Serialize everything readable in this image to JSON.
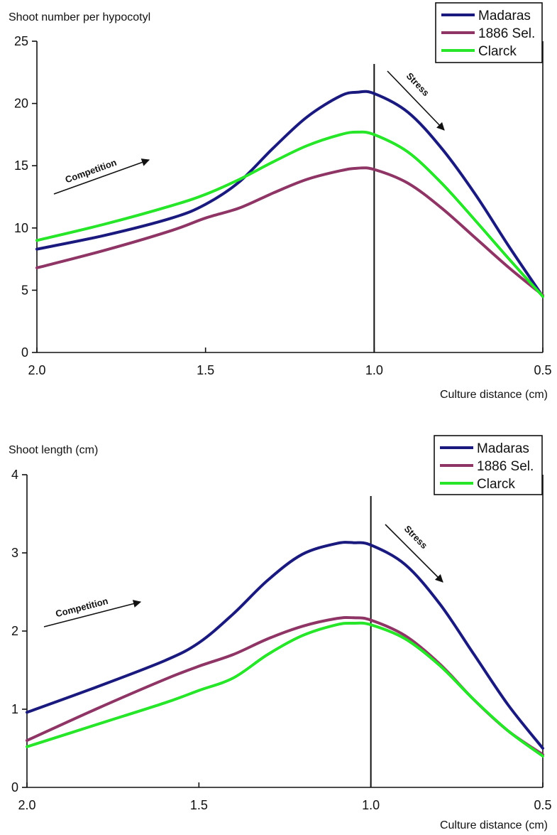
{
  "chart_data": [
    {
      "type": "line",
      "title": "",
      "ylabel": "Shoot number per hypocotyl",
      "xlabel": "Culture distance (cm)",
      "xlim": [
        2.0,
        0.5
      ],
      "ylim": [
        0,
        25
      ],
      "xticks": [
        2.0,
        1.5,
        1.0,
        0.5
      ],
      "xtick_labels": [
        "2.0",
        "1.5",
        "1.0",
        "0.5"
      ],
      "yticks": [
        0,
        5,
        10,
        15,
        20,
        25
      ],
      "ytick_labels": [
        "0",
        "5",
        "10",
        "15",
        "20",
        "25"
      ],
      "grid": false,
      "legend_position": "top-right",
      "reference_line_x": 1.0,
      "annotations": [
        {
          "text": "Competition",
          "side": "left"
        },
        {
          "text": "Stress",
          "side": "right"
        }
      ],
      "series": [
        {
          "name": "Madaras",
          "color": "#1a1a7e",
          "x": [
            2.0,
            1.8,
            1.6,
            1.5,
            1.4,
            1.3,
            1.2,
            1.1,
            1.05,
            1.0,
            0.9,
            0.8,
            0.7,
            0.6,
            0.5
          ],
          "y": [
            8.3,
            9.4,
            10.8,
            11.9,
            13.7,
            16.4,
            18.9,
            20.6,
            20.9,
            20.8,
            19.3,
            16.4,
            12.7,
            8.5,
            4.5
          ]
        },
        {
          "name": "1886 Sel.",
          "color": "#8e3566",
          "x": [
            2.0,
            1.8,
            1.6,
            1.5,
            1.4,
            1.3,
            1.2,
            1.1,
            1.05,
            1.0,
            0.9,
            0.8,
            0.7,
            0.6,
            0.5
          ],
          "y": [
            6.8,
            8.2,
            9.8,
            10.8,
            11.6,
            12.8,
            13.9,
            14.6,
            14.8,
            14.7,
            13.6,
            11.6,
            9.2,
            6.8,
            4.6
          ]
        },
        {
          "name": "Clarck",
          "color": "#27e62a",
          "x": [
            2.0,
            1.8,
            1.6,
            1.5,
            1.4,
            1.3,
            1.2,
            1.1,
            1.05,
            1.0,
            0.9,
            0.8,
            0.7,
            0.6,
            0.5
          ],
          "y": [
            9.0,
            10.3,
            11.8,
            12.7,
            13.9,
            15.3,
            16.6,
            17.5,
            17.7,
            17.5,
            16.1,
            13.6,
            10.6,
            7.5,
            4.5
          ]
        }
      ]
    },
    {
      "type": "line",
      "title": "",
      "ylabel": "Shoot length (cm)",
      "xlabel": "Culture distance (cm)",
      "xlim": [
        2.0,
        0.5
      ],
      "ylim": [
        0,
        4
      ],
      "xticks": [
        2.0,
        1.5,
        1.0,
        0.5
      ],
      "xtick_labels": [
        "2.0",
        "1.5",
        "1.0",
        "0.5"
      ],
      "yticks": [
        0,
        1,
        2,
        3,
        4
      ],
      "ytick_labels": [
        "0",
        "1",
        "2",
        "3",
        "4"
      ],
      "grid": false,
      "legend_position": "top-right",
      "reference_line_x": 1.0,
      "annotations": [
        {
          "text": "Competition",
          "side": "left"
        },
        {
          "text": "Stress",
          "side": "right"
        }
      ],
      "series": [
        {
          "name": "Madaras",
          "color": "#1a1a7e",
          "x": [
            2.0,
            1.8,
            1.6,
            1.5,
            1.4,
            1.3,
            1.2,
            1.1,
            1.05,
            1.0,
            0.9,
            0.8,
            0.7,
            0.6,
            0.5
          ],
          "y": [
            0.96,
            1.28,
            1.62,
            1.85,
            2.22,
            2.65,
            2.98,
            3.12,
            3.13,
            3.1,
            2.85,
            2.35,
            1.7,
            1.05,
            0.5
          ]
        },
        {
          "name": "1886 Sel.",
          "color": "#8e3566",
          "x": [
            2.0,
            1.8,
            1.6,
            1.5,
            1.4,
            1.3,
            1.2,
            1.1,
            1.05,
            1.0,
            0.9,
            0.8,
            0.7,
            0.6,
            0.5
          ],
          "y": [
            0.6,
            1.0,
            1.38,
            1.55,
            1.7,
            1.9,
            2.06,
            2.16,
            2.17,
            2.14,
            1.94,
            1.58,
            1.12,
            0.72,
            0.42
          ]
        },
        {
          "name": "Clarck",
          "color": "#27e62a",
          "x": [
            2.0,
            1.8,
            1.6,
            1.5,
            1.4,
            1.3,
            1.2,
            1.1,
            1.05,
            1.0,
            0.9,
            0.8,
            0.7,
            0.6,
            0.5
          ],
          "y": [
            0.52,
            0.8,
            1.08,
            1.24,
            1.4,
            1.7,
            1.94,
            2.08,
            2.1,
            2.08,
            1.9,
            1.56,
            1.12,
            0.72,
            0.4
          ]
        }
      ]
    }
  ]
}
